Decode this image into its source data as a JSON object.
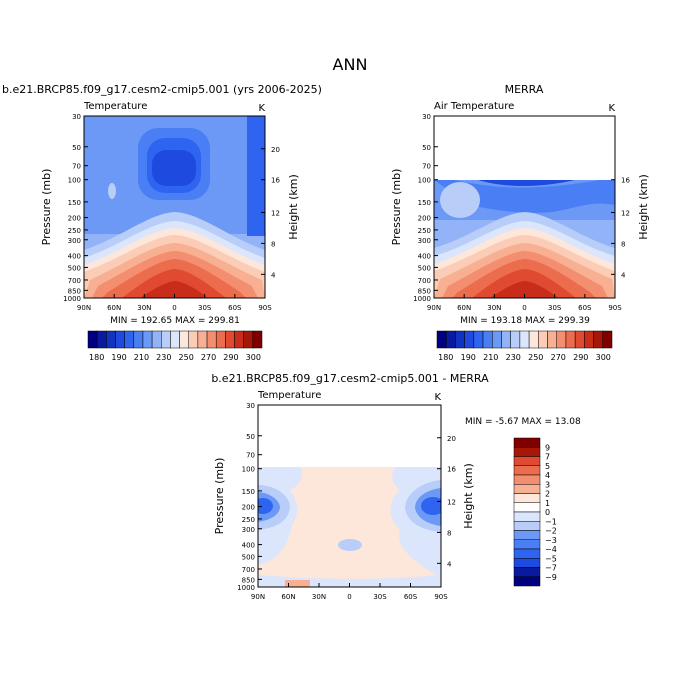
{
  "page_title": "ANN",
  "colors": {
    "cool": [
      "#000080",
      "#0a1a9e",
      "#1232c2",
      "#1e4ae0",
      "#2f64f0",
      "#4a7ef4",
      "#6c99f5",
      "#92b3f7",
      "#b8cef9",
      "#dbe6fc"
    ],
    "warm": [
      "#fde6da",
      "#fbccb6",
      "#f8b093",
      "#f38f70",
      "#ec6c4e",
      "#df4a30",
      "#c82c1a",
      "#a71708",
      "#800000"
    ],
    "white": "#ffffff"
  },
  "panels": [
    {
      "title": "b.e21.BRCP85.f09_g17.cesm2-cmip5.001 (yrs 2006-2025)",
      "subtitle": "Temperature",
      "units": "K",
      "ylabel": "Pressure (mb)",
      "ylabel_right": "Height (km)",
      "minmax": "MIN = 192.65   MAX = 299.81"
    },
    {
      "title": "MERRA",
      "subtitle": "Air Temperature",
      "units": "K",
      "ylabel": "Pressure (mb)",
      "ylabel_right": "Height (km)",
      "minmax": "MIN = 193.18   MAX = 299.39"
    },
    {
      "title": "b.e21.BRCP85.f09_g17.cesm2-cmip5.001 - MERRA",
      "subtitle": "Temperature",
      "units": "K",
      "ylabel": "Pressure (mb)",
      "ylabel_right": "Height (km)",
      "minmax": "MIN =   -5.67   MAX =   13.08"
    }
  ],
  "chart_data": [
    {
      "type": "heatmap",
      "title": "b.e21.BRCP85.f09_g17.cesm2-cmip5.001 (yrs 2006-2025)",
      "variable": "Temperature",
      "units": "K",
      "x_ticks": [
        "90N",
        "60N",
        "30N",
        "0",
        "30S",
        "60S",
        "90S"
      ],
      "y_ticks_pressure": [
        "30",
        "50",
        "70",
        "100",
        "150",
        "200",
        "250",
        "300",
        "400",
        "500",
        "700",
        "850",
        "1000"
      ],
      "y_ticks_height": [
        "20",
        "16",
        "12",
        "8",
        "4"
      ],
      "y_range_mb": [
        30,
        1000
      ],
      "min": 192.65,
      "max": 299.81,
      "colorbar_levels": [
        180,
        190,
        200,
        210,
        220,
        230,
        240,
        250,
        260,
        270,
        280,
        290,
        300
      ],
      "colorbar_labels": [
        "180",
        "190",
        "210",
        "230",
        "250",
        "270",
        "290",
        "300"
      ]
    },
    {
      "type": "heatmap",
      "title": "MERRA",
      "variable": "Air Temperature",
      "units": "K",
      "x_ticks": [
        "90N",
        "60N",
        "30N",
        "0",
        "30S",
        "60S",
        "90S"
      ],
      "y_ticks_pressure": [
        "30",
        "50",
        "70",
        "100",
        "150",
        "200",
        "250",
        "300",
        "400",
        "500",
        "700",
        "850",
        "1000"
      ],
      "y_ticks_height": [
        "16",
        "12",
        "8",
        "4"
      ],
      "data_top_mb": 100,
      "min": 193.18,
      "max": 299.39,
      "colorbar_levels": [
        180,
        190,
        200,
        210,
        220,
        230,
        240,
        250,
        260,
        270,
        280,
        290,
        300
      ],
      "colorbar_labels": [
        "180",
        "190",
        "210",
        "230",
        "250",
        "270",
        "290",
        "300"
      ]
    },
    {
      "type": "heatmap",
      "title": "b.e21.BRCP85.f09_g17.cesm2-cmip5.001 - MERRA",
      "variable": "Temperature",
      "units": "K",
      "x_ticks": [
        "90N",
        "60N",
        "30N",
        "0",
        "30S",
        "60S",
        "90S"
      ],
      "y_ticks_pressure": [
        "30",
        "50",
        "70",
        "100",
        "150",
        "200",
        "250",
        "300",
        "400",
        "500",
        "700",
        "850",
        "1000"
      ],
      "y_ticks_height": [
        "20",
        "16",
        "12",
        "8",
        "4"
      ],
      "data_top_mb": 100,
      "min": -5.67,
      "max": 13.08,
      "colorbar_levels": [
        9,
        7,
        5,
        4,
        3,
        2,
        1,
        0,
        -1,
        -2,
        -3,
        -4,
        -5,
        -7,
        -9
      ],
      "colorbar_labels": [
        "9",
        "7",
        "5",
        "4",
        "3",
        "2",
        "1",
        "0",
        "−1",
        "−2",
        "−3",
        "−4",
        "−5",
        "−7",
        "−9"
      ]
    }
  ]
}
